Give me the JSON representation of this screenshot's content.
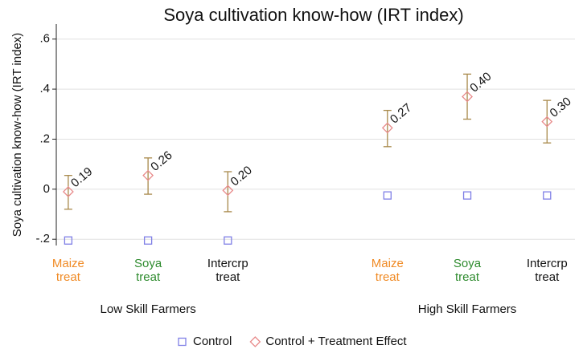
{
  "chart_data": {
    "type": "dot-errorbar",
    "title": "Soya cultivation know-how (IRT index)",
    "y_label": "Soya cultivation know-how (IRT index)",
    "x": [
      1,
      2,
      3,
      5,
      6,
      7
    ],
    "xlim": [
      0.85,
      7.35
    ],
    "categories": [
      [
        "Maize",
        "treat"
      ],
      [
        "Soya",
        "treat"
      ],
      [
        "Intercrp",
        "treat"
      ],
      [
        "Maize",
        "treat"
      ],
      [
        "Soya",
        "treat"
      ],
      [
        "Intercrp",
        "treat"
      ]
    ],
    "category_colors": [
      "#f08a24",
      "#2e8b2e",
      "#111111",
      "#f08a24",
      "#2e8b2e",
      "#111111"
    ],
    "groups": [
      {
        "label": "Low Skill Farmers",
        "x": 2
      },
      {
        "label": "High Skill Farmers",
        "x": 6
      }
    ],
    "ylim": [
      -0.225,
      0.66
    ],
    "yticks": [
      {
        "value": -0.2,
        "label": "-.2"
      },
      0,
      {
        "value": 0.2,
        "label": ".2"
      },
      {
        "value": 0.4,
        "label": ".4"
      },
      {
        "value": 0.6,
        "label": ".6"
      }
    ],
    "grid": true,
    "series": [
      {
        "name": "Control",
        "marker": "square",
        "color": "#7f7fe6",
        "values": [
          -0.205,
          -0.205,
          -0.205,
          -0.025,
          -0.025,
          -0.025
        ]
      },
      {
        "name": "Control + Treatment Effect",
        "marker": "diamond",
        "color": "#e88a8a",
        "values": [
          -0.01,
          0.055,
          -0.005,
          0.245,
          0.37,
          0.27
        ],
        "ci_low": [
          -0.08,
          -0.02,
          -0.09,
          0.17,
          0.28,
          0.185
        ],
        "ci_high": [
          0.055,
          0.125,
          0.07,
          0.315,
          0.46,
          0.355
        ],
        "ci_color": "#a8894a",
        "annotations": [
          "0.19",
          "0.26",
          "0.20",
          "0.27",
          "0.40",
          "0.30"
        ]
      }
    ],
    "legend": "bottom"
  }
}
